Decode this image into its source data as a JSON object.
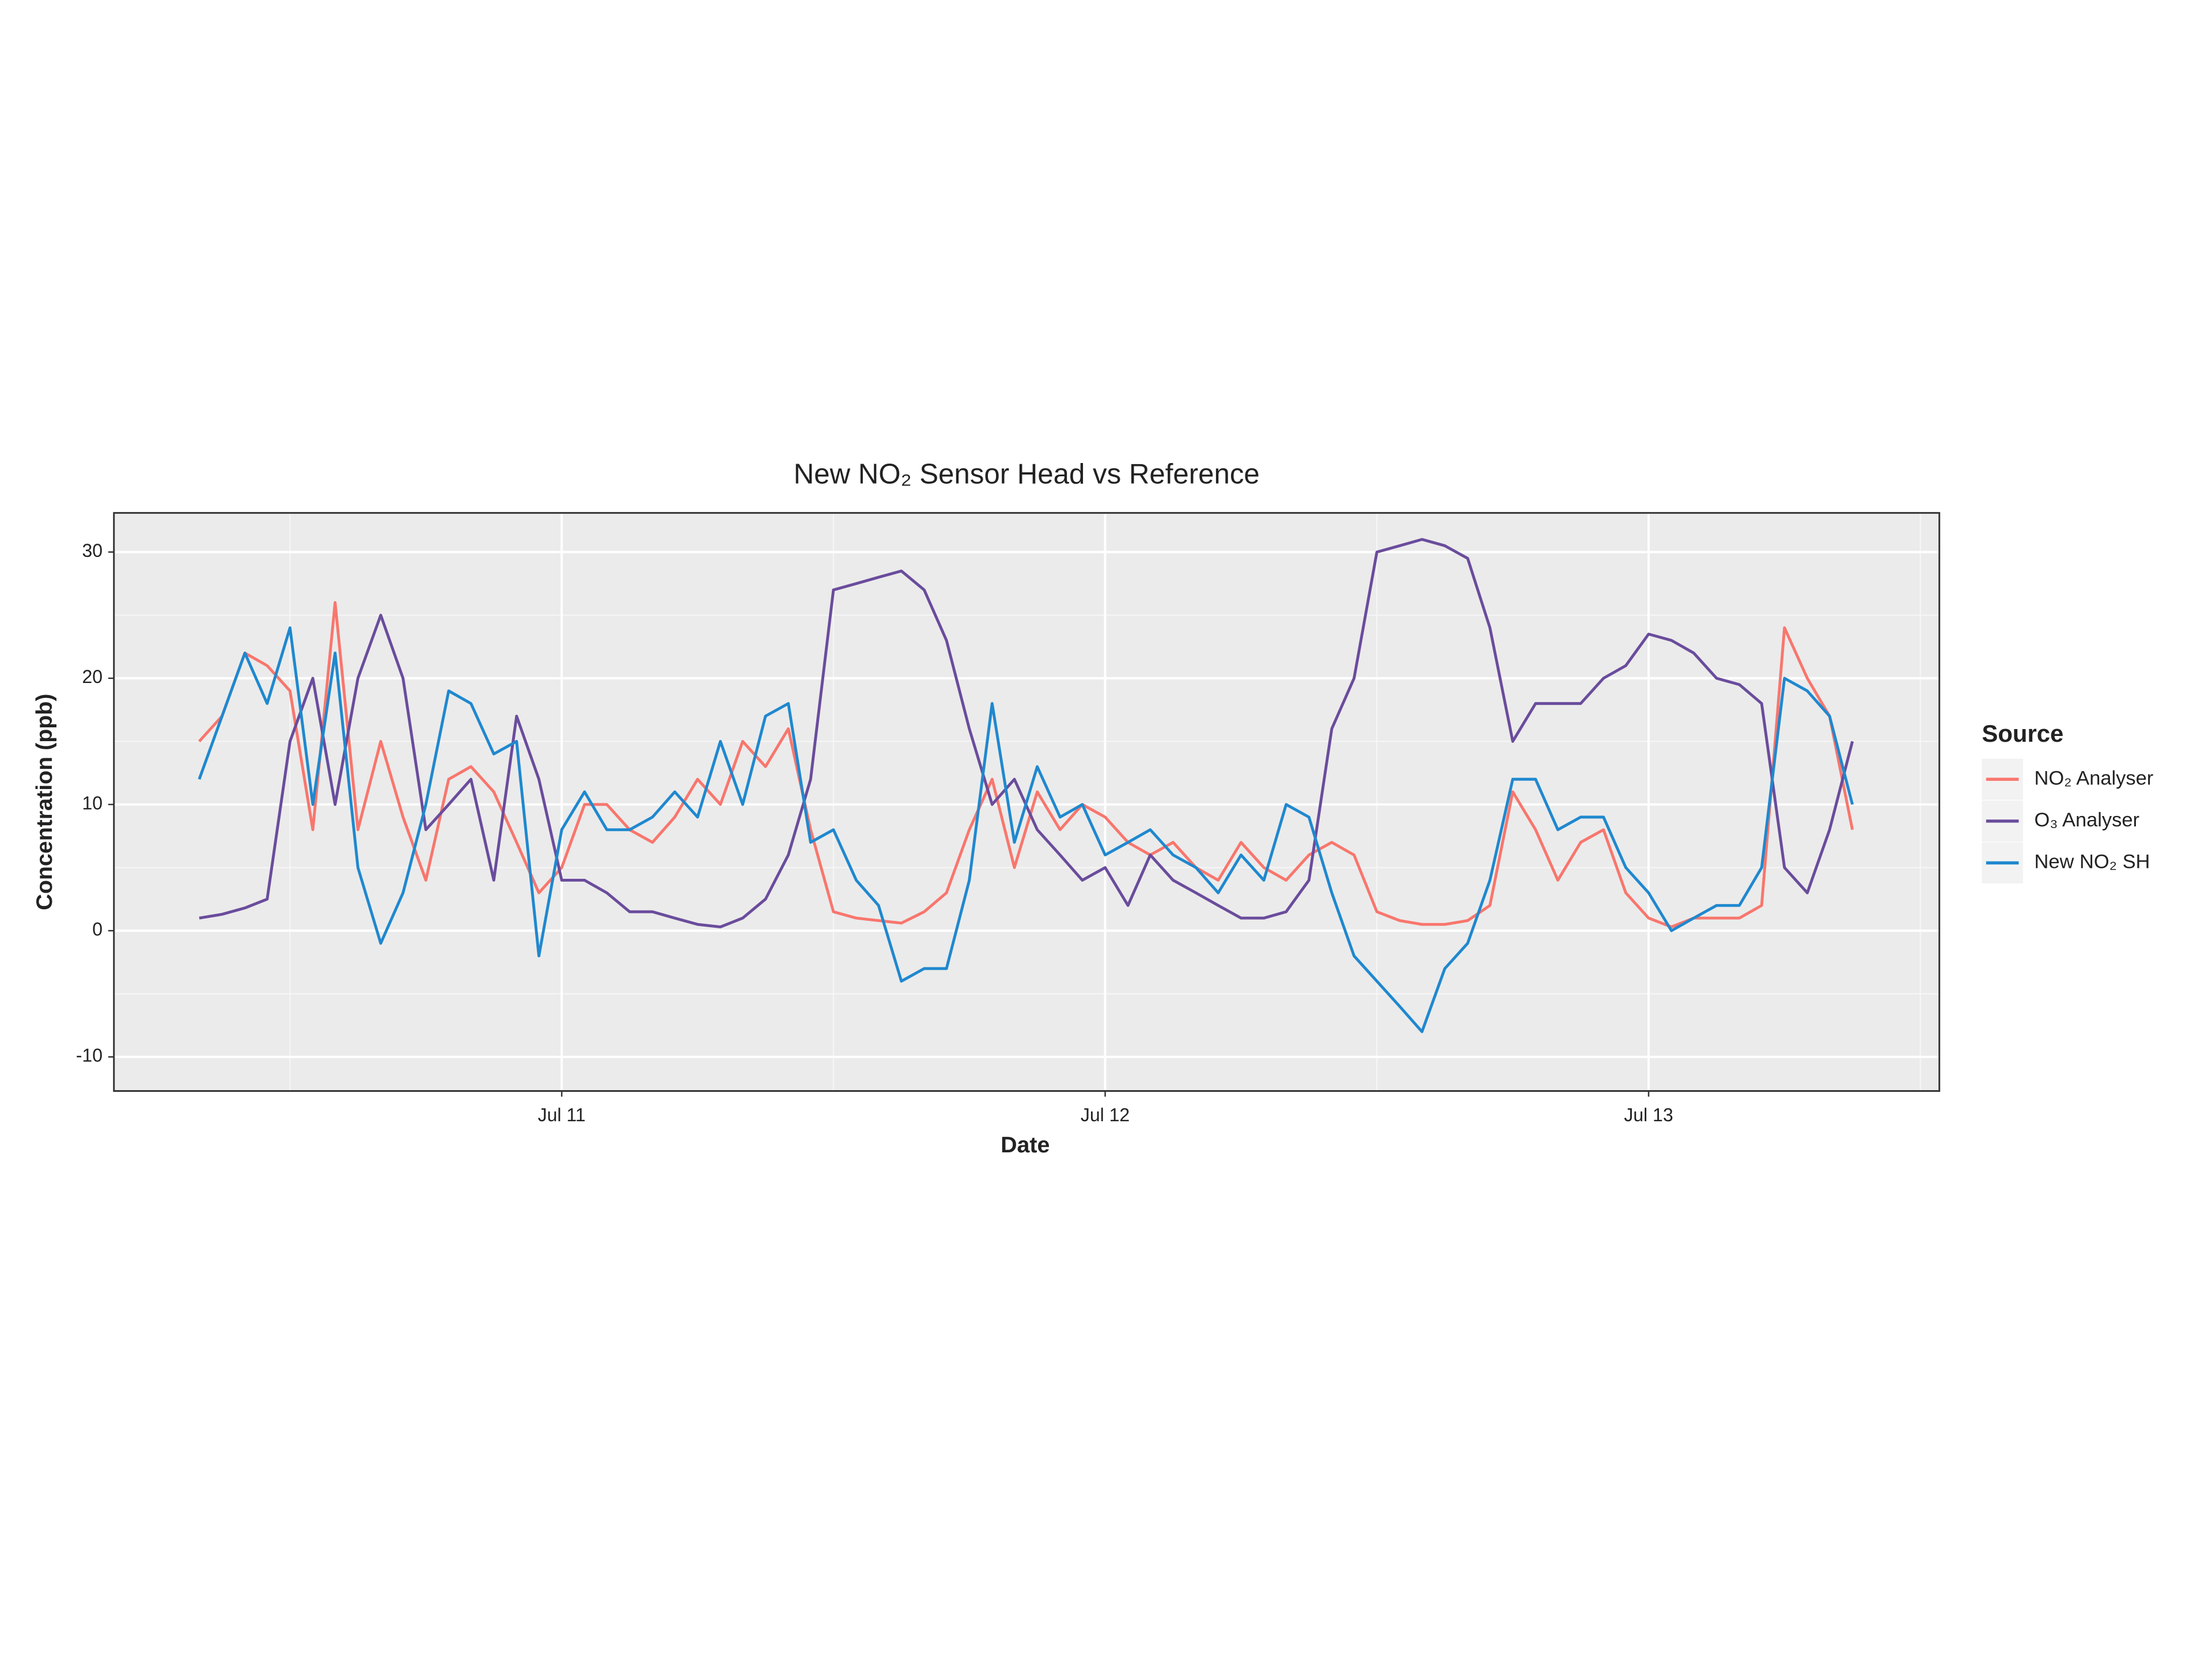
{
  "chart_data": {
    "type": "line",
    "title": "New NO₂ Sensor Head vs Reference",
    "x_label": "Date",
    "y_label": "Concentration (ppb)",
    "legend_title": "Source",
    "legend_position": "right",
    "grid": true,
    "x": [
      10.333,
      10.375,
      10.417,
      10.458,
      10.5,
      10.542,
      10.583,
      10.625,
      10.667,
      10.708,
      10.75,
      10.792,
      10.833,
      10.875,
      10.917,
      10.958,
      11,
      11.042,
      11.083,
      11.125,
      11.167,
      11.208,
      11.25,
      11.292,
      11.333,
      11.375,
      11.417,
      11.458,
      11.5,
      11.542,
      11.583,
      11.625,
      11.667,
      11.708,
      11.75,
      11.792,
      11.833,
      11.875,
      11.917,
      11.958,
      12,
      12.042,
      12.083,
      12.125,
      12.167,
      12.208,
      12.25,
      12.292,
      12.333,
      12.375,
      12.417,
      12.458,
      12.5,
      12.542,
      12.583,
      12.625,
      12.667,
      12.708,
      12.75,
      12.792,
      12.833,
      12.875,
      12.917,
      12.958,
      13,
      13.042,
      13.083,
      13.125,
      13.167,
      13.208,
      13.25,
      13.292,
      13.333,
      13.375
    ],
    "xlim": [
      10.176,
      13.535
    ],
    "xticks": [
      {
        "value": 11,
        "label": "Jul 11"
      },
      {
        "value": 12,
        "label": "Jul 12"
      },
      {
        "value": 13,
        "label": "Jul 13"
      }
    ],
    "ylim": [
      -12.7,
      33.1
    ],
    "yticks": [
      -10,
      0,
      10,
      20,
      30
    ],
    "series": [
      {
        "name": "NO₂ Analyser",
        "color": "#f8766d",
        "values": [
          15,
          17,
          22,
          21,
          19,
          8,
          26,
          8,
          15,
          9,
          4,
          12,
          13,
          11,
          7,
          3,
          5,
          10,
          10,
          8,
          7,
          9,
          12,
          10,
          15,
          13,
          16,
          8,
          1.5,
          1,
          0.8,
          0.6,
          1.5,
          3,
          8,
          12,
          5,
          11,
          8,
          10,
          9,
          7,
          6,
          7,
          5,
          4,
          7,
          5,
          4,
          6,
          7,
          6,
          1.5,
          0.8,
          0.5,
          0.5,
          0.8,
          2,
          11,
          8,
          4,
          7,
          8,
          3,
          1,
          0.3,
          1,
          1,
          1,
          2,
          24,
          20,
          17,
          8
        ]
      },
      {
        "name": "O₃ Analyser",
        "color": "#6a4c9c",
        "values": [
          1,
          1.3,
          1.8,
          2.5,
          15,
          20,
          10,
          20,
          25,
          20,
          8,
          10,
          12,
          4,
          17,
          12,
          4,
          4,
          3,
          1.5,
          1.5,
          1,
          0.5,
          0.3,
          1,
          2.5,
          6,
          12,
          27,
          27.5,
          28,
          28.5,
          27,
          23,
          16,
          10,
          12,
          8,
          6,
          4,
          5,
          2,
          6,
          4,
          3,
          2,
          1,
          1,
          1.5,
          4,
          16,
          20,
          30,
          30.5,
          31,
          30.5,
          29.5,
          24,
          15,
          18,
          18,
          18,
          20,
          21,
          23.5,
          23,
          22,
          20,
          19.5,
          18,
          5,
          3,
          8,
          15
        ]
      },
      {
        "name": "New NO₂ SH",
        "color": "#1f88cf",
        "values": [
          12,
          17,
          22,
          18,
          24,
          10,
          22,
          5,
          -1,
          3,
          10,
          19,
          18,
          14,
          15,
          -2,
          8,
          11,
          8,
          8,
          9,
          11,
          9,
          15,
          10,
          17,
          18,
          7,
          8,
          4,
          2,
          -4,
          -3,
          -3,
          4,
          18,
          7,
          13,
          9,
          10,
          6,
          7,
          8,
          6,
          5,
          3,
          6,
          4,
          10,
          9,
          3,
          -2,
          -4,
          -6,
          -8,
          -3,
          -1,
          4,
          12,
          12,
          8,
          9,
          9,
          5,
          3,
          0,
          1,
          2,
          2,
          5,
          20,
          19,
          17,
          10
        ]
      }
    ]
  }
}
